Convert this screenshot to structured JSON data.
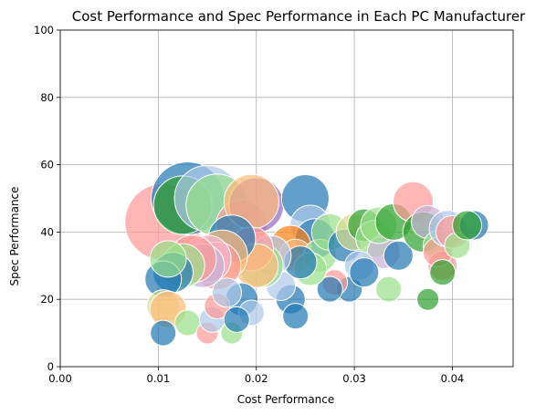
{
  "chart_data": {
    "type": "scatter",
    "title": "Cost Performance and Spec Performance in Each PC Manufacturer",
    "xlabel": "Cost Performance",
    "ylabel": "Spec Performance",
    "xlim": [
      0,
      0.0462
    ],
    "ylim": [
      0,
      100
    ],
    "x_ticks": [
      0.0,
      0.01,
      0.02,
      0.03,
      0.04
    ],
    "x_tick_labels": [
      "0.00",
      "0.01",
      "0.02",
      "0.03",
      "0.04"
    ],
    "y_ticks": [
      0,
      20,
      40,
      60,
      80,
      100
    ],
    "y_tick_labels": [
      "0",
      "20",
      "40",
      "60",
      "80",
      "100"
    ],
    "grid": true,
    "legend": "none",
    "colors": {
      "dark_blue": "#1f77b4",
      "light_blue": "#aec7e8",
      "orange": "#ff7f0e",
      "light_orange": "#ffbb78",
      "green": "#2ca02c",
      "light_green": "#98df8a",
      "pink": "#ff9896",
      "light_pink": "#f7b6d2",
      "purple": "#9467bd",
      "lavender": "#c5b0d5",
      "yellow_green": "#dbdb8d",
      "grid": "#b0b0b0"
    },
    "points": [
      {
        "x": 0.0105,
        "y": 43,
        "size": 42,
        "color": "pink"
      },
      {
        "x": 0.013,
        "y": 50,
        "size": 40,
        "color": "dark_blue"
      },
      {
        "x": 0.0125,
        "y": 48,
        "size": 32,
        "color": "green"
      },
      {
        "x": 0.015,
        "y": 50,
        "size": 36,
        "color": "light_blue"
      },
      {
        "x": 0.016,
        "y": 48,
        "size": 34,
        "color": "light_green"
      },
      {
        "x": 0.0185,
        "y": 42,
        "size": 28,
        "color": "pink"
      },
      {
        "x": 0.02,
        "y": 48,
        "size": 30,
        "color": "purple"
      },
      {
        "x": 0.0195,
        "y": 49,
        "size": 30,
        "color": "light_orange"
      },
      {
        "x": 0.025,
        "y": 50,
        "size": 26,
        "color": "dark_blue"
      },
      {
        "x": 0.0255,
        "y": 42,
        "size": 22,
        "color": "light_blue"
      },
      {
        "x": 0.026,
        "y": 38,
        "size": 22,
        "color": "dark_blue"
      },
      {
        "x": 0.0235,
        "y": 36,
        "size": 22,
        "color": "orange"
      },
      {
        "x": 0.024,
        "y": 33,
        "size": 18,
        "color": "light_orange"
      },
      {
        "x": 0.0265,
        "y": 33,
        "size": 18,
        "color": "light_green"
      },
      {
        "x": 0.0275,
        "y": 40,
        "size": 20,
        "color": "light_green"
      },
      {
        "x": 0.029,
        "y": 36,
        "size": 18,
        "color": "dark_blue"
      },
      {
        "x": 0.03,
        "y": 40,
        "size": 20,
        "color": "yellow_green"
      },
      {
        "x": 0.031,
        "y": 42,
        "size": 18,
        "color": "green"
      },
      {
        "x": 0.032,
        "y": 38,
        "size": 20,
        "color": "light_green"
      },
      {
        "x": 0.033,
        "y": 34,
        "size": 18,
        "color": "lavender"
      },
      {
        "x": 0.0325,
        "y": 42,
        "size": 20,
        "color": "light_green"
      },
      {
        "x": 0.034,
        "y": 43,
        "size": 20,
        "color": "green"
      },
      {
        "x": 0.0345,
        "y": 33,
        "size": 16,
        "color": "dark_blue"
      },
      {
        "x": 0.036,
        "y": 49,
        "size": 22,
        "color": "pink"
      },
      {
        "x": 0.037,
        "y": 40,
        "size": 22,
        "color": "green"
      },
      {
        "x": 0.0375,
        "y": 43,
        "size": 18,
        "color": "lavender"
      },
      {
        "x": 0.0385,
        "y": 36,
        "size": 16,
        "color": "light_green"
      },
      {
        "x": 0.039,
        "y": 30,
        "size": 16,
        "color": "pink"
      },
      {
        "x": 0.0385,
        "y": 34,
        "size": 16,
        "color": "pink"
      },
      {
        "x": 0.0395,
        "y": 41,
        "size": 20,
        "color": "light_blue"
      },
      {
        "x": 0.04,
        "y": 40,
        "size": 18,
        "color": "pink"
      },
      {
        "x": 0.0405,
        "y": 36,
        "size": 14,
        "color": "light_green"
      },
      {
        "x": 0.0422,
        "y": 42,
        "size": 16,
        "color": "dark_blue"
      },
      {
        "x": 0.0415,
        "y": 42,
        "size": 16,
        "color": "green"
      },
      {
        "x": 0.039,
        "y": 28,
        "size": 14,
        "color": "green"
      },
      {
        "x": 0.0375,
        "y": 20,
        "size": 12,
        "color": "green"
      },
      {
        "x": 0.0335,
        "y": 23,
        "size": 14,
        "color": "light_green"
      },
      {
        "x": 0.0295,
        "y": 23,
        "size": 14,
        "color": "dark_blue"
      },
      {
        "x": 0.028,
        "y": 25,
        "size": 14,
        "color": "pink"
      },
      {
        "x": 0.0305,
        "y": 30,
        "size": 16,
        "color": "light_blue"
      },
      {
        "x": 0.031,
        "y": 28,
        "size": 16,
        "color": "dark_blue"
      },
      {
        "x": 0.0275,
        "y": 23,
        "size": 14,
        "color": "dark_blue"
      },
      {
        "x": 0.0255,
        "y": 29,
        "size": 18,
        "color": "light_green"
      },
      {
        "x": 0.0245,
        "y": 31,
        "size": 18,
        "color": "dark_blue"
      },
      {
        "x": 0.0235,
        "y": 20,
        "size": 16,
        "color": "dark_blue"
      },
      {
        "x": 0.024,
        "y": 15,
        "size": 14,
        "color": "dark_blue"
      },
      {
        "x": 0.0225,
        "y": 24,
        "size": 16,
        "color": "light_blue"
      },
      {
        "x": 0.0215,
        "y": 33,
        "size": 22,
        "color": "light_blue"
      },
      {
        "x": 0.0205,
        "y": 30,
        "size": 24,
        "color": "light_green"
      },
      {
        "x": 0.0195,
        "y": 35,
        "size": 24,
        "color": "pink"
      },
      {
        "x": 0.02,
        "y": 30,
        "size": 24,
        "color": "light_orange"
      },
      {
        "x": 0.0185,
        "y": 20,
        "size": 18,
        "color": "dark_blue"
      },
      {
        "x": 0.0195,
        "y": 16,
        "size": 14,
        "color": "light_blue"
      },
      {
        "x": 0.0175,
        "y": 38,
        "size": 26,
        "color": "dark_blue"
      },
      {
        "x": 0.0165,
        "y": 33,
        "size": 28,
        "color": "light_orange"
      },
      {
        "x": 0.016,
        "y": 30,
        "size": 26,
        "color": "pink"
      },
      {
        "x": 0.015,
        "y": 32,
        "size": 26,
        "color": "light_pink"
      },
      {
        "x": 0.0145,
        "y": 30,
        "size": 24,
        "color": "lavender"
      },
      {
        "x": 0.0135,
        "y": 32,
        "size": 26,
        "color": "pink"
      },
      {
        "x": 0.0125,
        "y": 30,
        "size": 24,
        "color": "light_green"
      },
      {
        "x": 0.0115,
        "y": 28,
        "size": 22,
        "color": "dark_blue"
      },
      {
        "x": 0.0105,
        "y": 26,
        "size": 20,
        "color": "dark_blue"
      },
      {
        "x": 0.011,
        "y": 32,
        "size": 20,
        "color": "light_green"
      },
      {
        "x": 0.0105,
        "y": 18,
        "size": 18,
        "color": "yellow_green"
      },
      {
        "x": 0.011,
        "y": 17,
        "size": 20,
        "color": "light_orange"
      },
      {
        "x": 0.0105,
        "y": 10,
        "size": 14,
        "color": "dark_blue"
      },
      {
        "x": 0.013,
        "y": 13,
        "size": 14,
        "color": "light_green"
      },
      {
        "x": 0.015,
        "y": 10,
        "size": 12,
        "color": "pink"
      },
      {
        "x": 0.0155,
        "y": 14,
        "size": 14,
        "color": "light_blue"
      },
      {
        "x": 0.016,
        "y": 18,
        "size": 14,
        "color": "pink"
      },
      {
        "x": 0.0175,
        "y": 10,
        "size": 12,
        "color": "light_green"
      },
      {
        "x": 0.018,
        "y": 14,
        "size": 14,
        "color": "dark_blue"
      },
      {
        "x": 0.017,
        "y": 22,
        "size": 16,
        "color": "light_blue"
      }
    ]
  }
}
